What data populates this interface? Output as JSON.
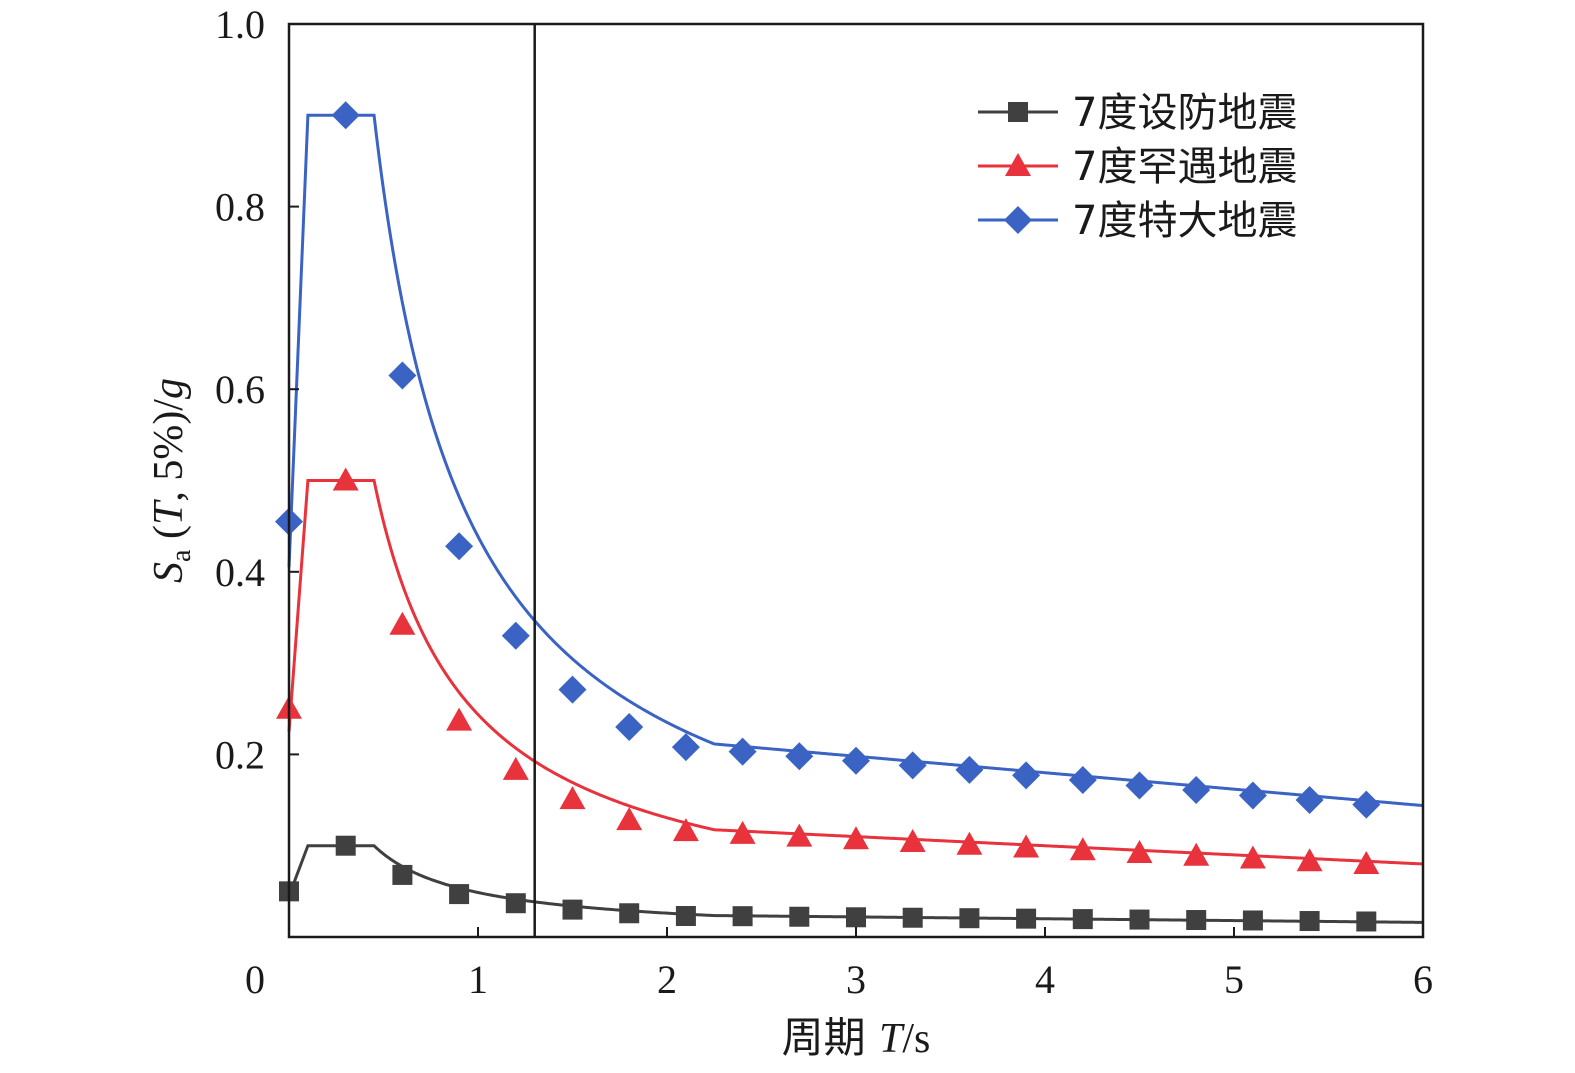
{
  "chart_data": {
    "type": "line",
    "xlabel_prefix": "周期 ",
    "xlabel_var": "T",
    "xlabel_unit": "/s",
    "ylabel_var": "S",
    "ylabel_sub": "a",
    "ylabel_paren_open": " (",
    "ylabel_T": "T",
    "ylabel_mid": ", 5%)/",
    "ylabel_g": "g",
    "xlim": [
      0,
      6
    ],
    "ylim": [
      0,
      1.0
    ],
    "xticks": [
      0,
      1,
      2,
      3,
      4,
      5,
      6
    ],
    "xtick_labels": [
      "0",
      "1",
      "2",
      "3",
      "4",
      "5",
      "6"
    ],
    "yticks": [
      0.2,
      0.4,
      0.6,
      0.8,
      1.0
    ],
    "ytick_labels": [
      "0.2",
      "0.4",
      "0.6",
      "0.8",
      "1.0"
    ],
    "reference_line_x": 1.3,
    "legend_position": "top-right",
    "grid": false,
    "series": [
      {
        "name": "7度设防地震",
        "color": "#404040",
        "marker": "square",
        "amax": 0.1,
        "markers_x": [
          0.0,
          0.3,
          0.6,
          0.9,
          1.2,
          1.5,
          1.8,
          2.1,
          2.4,
          2.7,
          3.0,
          3.3,
          3.6,
          3.9,
          4.2,
          4.5,
          4.8,
          5.1,
          5.4,
          5.7
        ],
        "markers_y": [
          0.05,
          0.1,
          0.068,
          0.047,
          0.037,
          0.03,
          0.026,
          0.023,
          0.0228,
          0.0222,
          0.0216,
          0.0211,
          0.0206,
          0.0201,
          0.0196,
          0.0191,
          0.0186,
          0.0181,
          0.0175,
          0.017
        ]
      },
      {
        "name": "7度罕遇地震",
        "color": "#e8323c",
        "marker": "triangle",
        "amax": 0.5,
        "markers_x": [
          0.0,
          0.3,
          0.6,
          0.9,
          1.2,
          1.5,
          1.8,
          2.1,
          2.4,
          2.7,
          3.0,
          3.3,
          3.6,
          3.9,
          4.2,
          4.5,
          4.8,
          5.1,
          5.4,
          5.7
        ],
        "markers_y": [
          0.25,
          0.5,
          0.342,
          0.237,
          0.183,
          0.151,
          0.128,
          0.116,
          0.113,
          0.11,
          0.107,
          0.104,
          0.101,
          0.098,
          0.095,
          0.092,
          0.089,
          0.086,
          0.083,
          0.08
        ]
      },
      {
        "name": "7度特大地震",
        "color": "#3a63c4",
        "marker": "diamond",
        "amax": 0.9,
        "markers_x": [
          0.0,
          0.3,
          0.6,
          0.9,
          1.2,
          1.5,
          1.8,
          2.1,
          2.4,
          2.7,
          3.0,
          3.3,
          3.6,
          3.9,
          4.2,
          4.5,
          4.8,
          5.1,
          5.4,
          5.7
        ],
        "markers_y": [
          0.455,
          0.9,
          0.615,
          0.428,
          0.33,
          0.271,
          0.23,
          0.208,
          0.203,
          0.198,
          0.193,
          0.188,
          0.183,
          0.177,
          0.172,
          0.166,
          0.161,
          0.155,
          0.15,
          0.145
        ]
      }
    ]
  }
}
